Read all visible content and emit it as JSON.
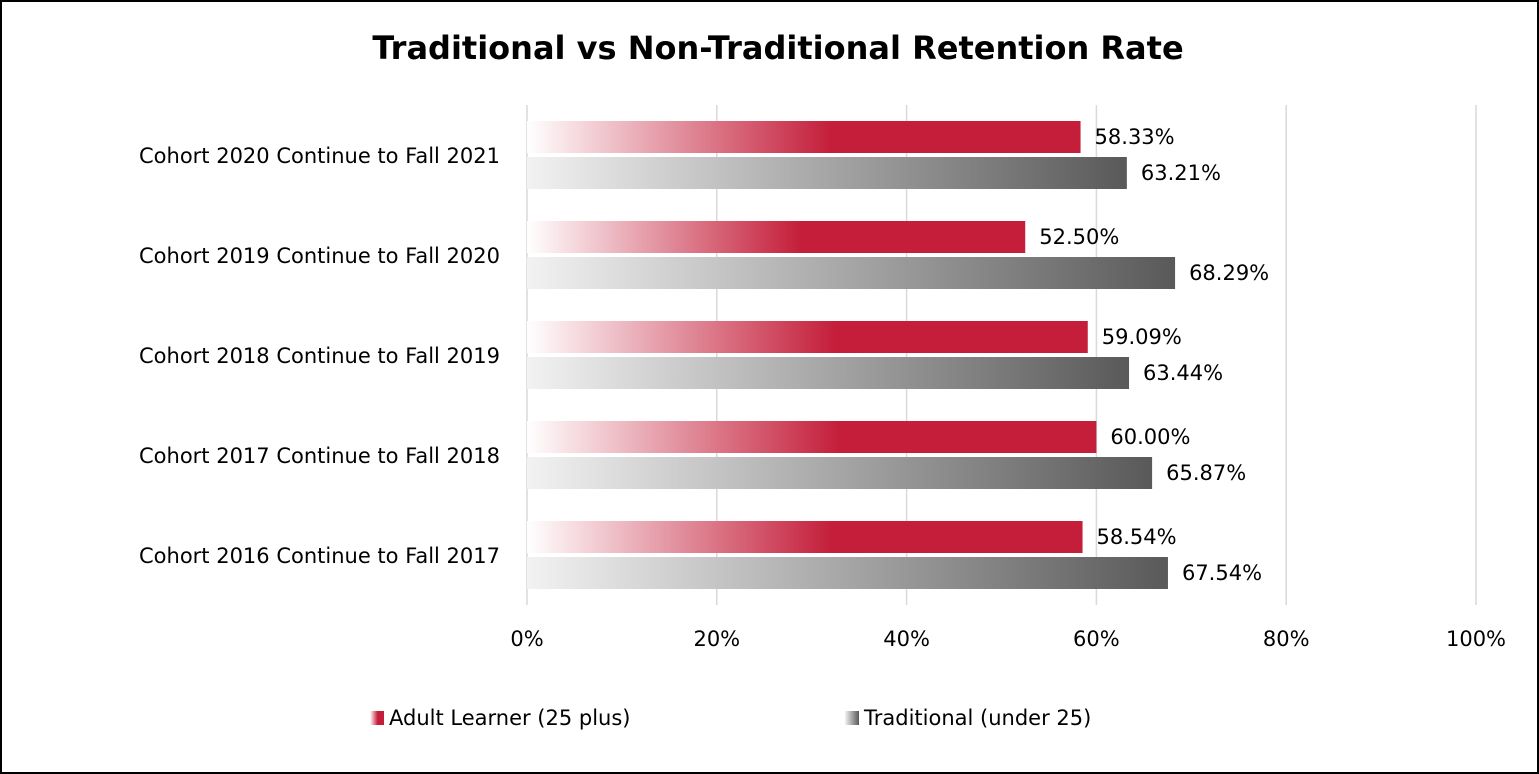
{
  "chart_data": {
    "type": "hbar",
    "title": "Traditional vs Non-Traditional Retention Rate",
    "categories": [
      "Cohort 2020 Continue to Fall 2021",
      "Cohort 2019 Continue to Fall 2020",
      "Cohort 2018 Continue to Fall 2019",
      "Cohort 2017 Continue to Fall 2018",
      "Cohort 2016 Continue to Fall 2017"
    ],
    "series": [
      {
        "name": "Adult Learner (25 plus)",
        "color": "#c41e3a",
        "values": [
          58.33,
          52.5,
          59.09,
          60.0,
          58.54
        ],
        "value_labels": [
          "58.33%",
          "52.50%",
          "59.09%",
          "60.00%",
          "58.54%"
        ]
      },
      {
        "name": "Traditional (under 25)",
        "color": "#595959",
        "values": [
          63.21,
          68.29,
          63.44,
          65.87,
          67.54
        ],
        "value_labels": [
          "63.21%",
          "68.29%",
          "63.44%",
          "65.87%",
          "67.54%"
        ]
      }
    ],
    "xlim": [
      0,
      100
    ],
    "xticks": [
      {
        "value": 0,
        "label": "0%"
      },
      {
        "value": 20,
        "label": "20%"
      },
      {
        "value": 40,
        "label": "40%"
      },
      {
        "value": 60,
        "label": "60%"
      },
      {
        "value": 80,
        "label": "80%"
      },
      {
        "value": 100,
        "label": "100%"
      }
    ],
    "grid": true,
    "legend": "bottom"
  }
}
